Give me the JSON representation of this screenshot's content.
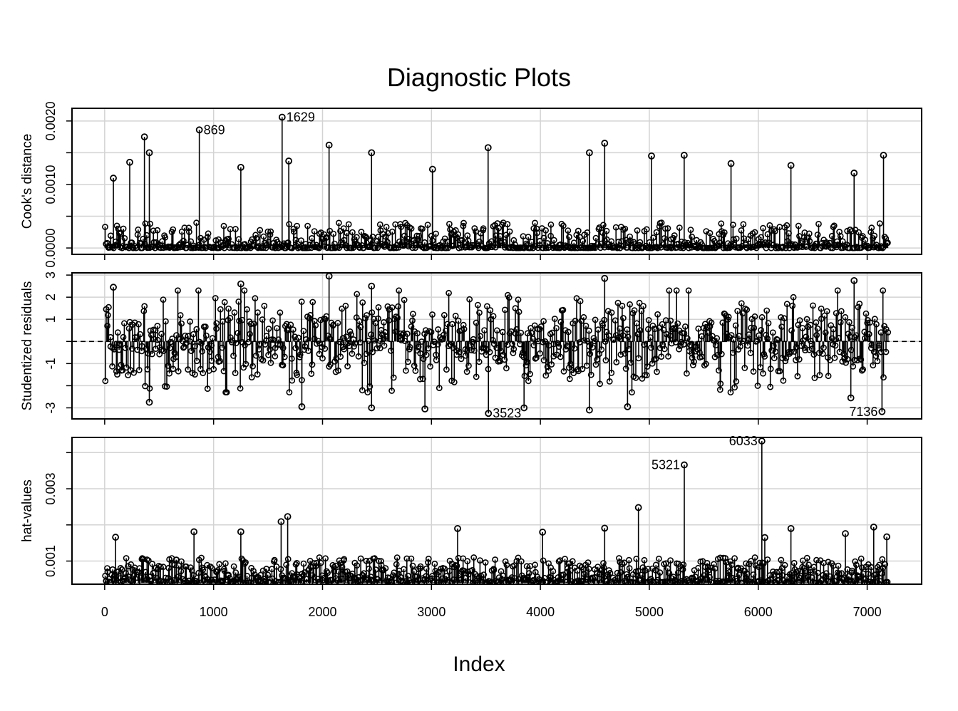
{
  "chart_data": {
    "type": "scatter",
    "title": "Diagnostic Plots",
    "xlabel": "Index",
    "xlim": [
      -300,
      7500
    ],
    "xticks": [
      0,
      1000,
      2000,
      3000,
      4000,
      5000,
      6000,
      7000
    ],
    "xtick_labels": [
      "0",
      "1000",
      "2000",
      "3000",
      "4000",
      "5000",
      "6000",
      "7000"
    ],
    "n_points": 7190,
    "grid": true,
    "style": "points with vertical drop lines (type='h' + 'p')",
    "panels": [
      {
        "id": "cooks",
        "ylabel": "Cook's distance",
        "ylim": [
          -0.0001,
          0.0022
        ],
        "yticks": [
          0,
          0.0005,
          0.001,
          0.0015,
          0.002
        ],
        "ytick_labels": [
          "0.0000",
          "",
          "0.0010",
          "",
          "0.0020"
        ],
        "baseline": 0,
        "reference_line": null,
        "labeled_points": [
          {
            "label": "869",
            "x": 869,
            "y": 0.00186
          },
          {
            "label": "1629",
            "x": 1629,
            "y": 0.00206
          }
        ],
        "notable_points": [
          {
            "x": 365,
            "y": 0.00175
          },
          {
            "x": 410,
            "y": 0.0015
          },
          {
            "x": 230,
            "y": 0.00135
          },
          {
            "x": 2060,
            "y": 0.00162
          },
          {
            "x": 2450,
            "y": 0.0015
          },
          {
            "x": 3520,
            "y": 0.00158
          },
          {
            "x": 4450,
            "y": 0.0015
          },
          {
            "x": 4590,
            "y": 0.00165
          },
          {
            "x": 5020,
            "y": 0.00145
          },
          {
            "x": 5320,
            "y": 0.00146
          },
          {
            "x": 5750,
            "y": 0.00133
          },
          {
            "x": 6300,
            "y": 0.0013
          },
          {
            "x": 7150,
            "y": 0.00146
          },
          {
            "x": 1250,
            "y": 0.00127
          },
          {
            "x": 3010,
            "y": 0.00124
          },
          {
            "x": 6880,
            "y": 0.00118
          },
          {
            "x": 1690,
            "y": 0.00137
          },
          {
            "x": 80,
            "y": 0.0011
          }
        ],
        "bulk_range": [
          0,
          0.0004
        ]
      },
      {
        "id": "rstudent",
        "ylabel": "Studentized residuals",
        "ylim": [
          -3.5,
          3.1
        ],
        "yticks": [
          -3,
          -2,
          -1,
          0,
          1,
          2,
          3
        ],
        "ytick_labels": [
          "-3",
          "",
          "-1",
          "",
          "1",
          "2",
          "3"
        ],
        "baseline": 0,
        "reference_line": 0,
        "labeled_points": [
          {
            "label": "3523",
            "x": 3523,
            "y": -3.25
          },
          {
            "label": "7136",
            "x": 7136,
            "y": -3.17
          }
        ],
        "notable_points": [
          {
            "x": 2060,
            "y": 2.95
          },
          {
            "x": 4590,
            "y": 2.85
          },
          {
            "x": 6880,
            "y": 2.75
          },
          {
            "x": 80,
            "y": 2.45
          },
          {
            "x": 1250,
            "y": 2.6
          },
          {
            "x": 2450,
            "y": 2.5
          },
          {
            "x": 410,
            "y": -2.75
          },
          {
            "x": 1810,
            "y": -2.95
          },
          {
            "x": 2450,
            "y": -3.0
          },
          {
            "x": 2940,
            "y": -3.05
          },
          {
            "x": 4450,
            "y": -3.1
          },
          {
            "x": 4800,
            "y": -2.95
          },
          {
            "x": 3850,
            "y": -3.0
          },
          {
            "x": 6850,
            "y": -2.55
          }
        ],
        "bulk_range": [
          -2.0,
          2.0
        ]
      },
      {
        "id": "hat",
        "ylabel": "hat-values",
        "ylim": [
          0.00036,
          0.00442
        ],
        "yticks": [
          0.001,
          0.002,
          0.003,
          0.004
        ],
        "ytick_labels": [
          "0.001",
          "",
          "0.003",
          ""
        ],
        "baseline": 0.0004,
        "reference_line": null,
        "labeled_points": [
          {
            "label": "5321",
            "x": 5321,
            "y": 0.00366
          },
          {
            "label": "6033",
            "x": 6033,
            "y": 0.00432
          }
        ],
        "notable_points": [
          {
            "x": 4900,
            "y": 0.00248
          },
          {
            "x": 1680,
            "y": 0.00223
          },
          {
            "x": 1620,
            "y": 0.00209
          },
          {
            "x": 7060,
            "y": 0.00194
          },
          {
            "x": 3240,
            "y": 0.0019
          },
          {
            "x": 6300,
            "y": 0.0019
          },
          {
            "x": 4590,
            "y": 0.00191
          },
          {
            "x": 1250,
            "y": 0.00181
          },
          {
            "x": 820,
            "y": 0.00181
          },
          {
            "x": 7180,
            "y": 0.00167
          },
          {
            "x": 6800,
            "y": 0.00176
          },
          {
            "x": 4020,
            "y": 0.0018
          },
          {
            "x": 100,
            "y": 0.00166
          },
          {
            "x": 6060,
            "y": 0.00165
          }
        ],
        "bulk_range": [
          0.0004,
          0.0011
        ]
      }
    ]
  }
}
